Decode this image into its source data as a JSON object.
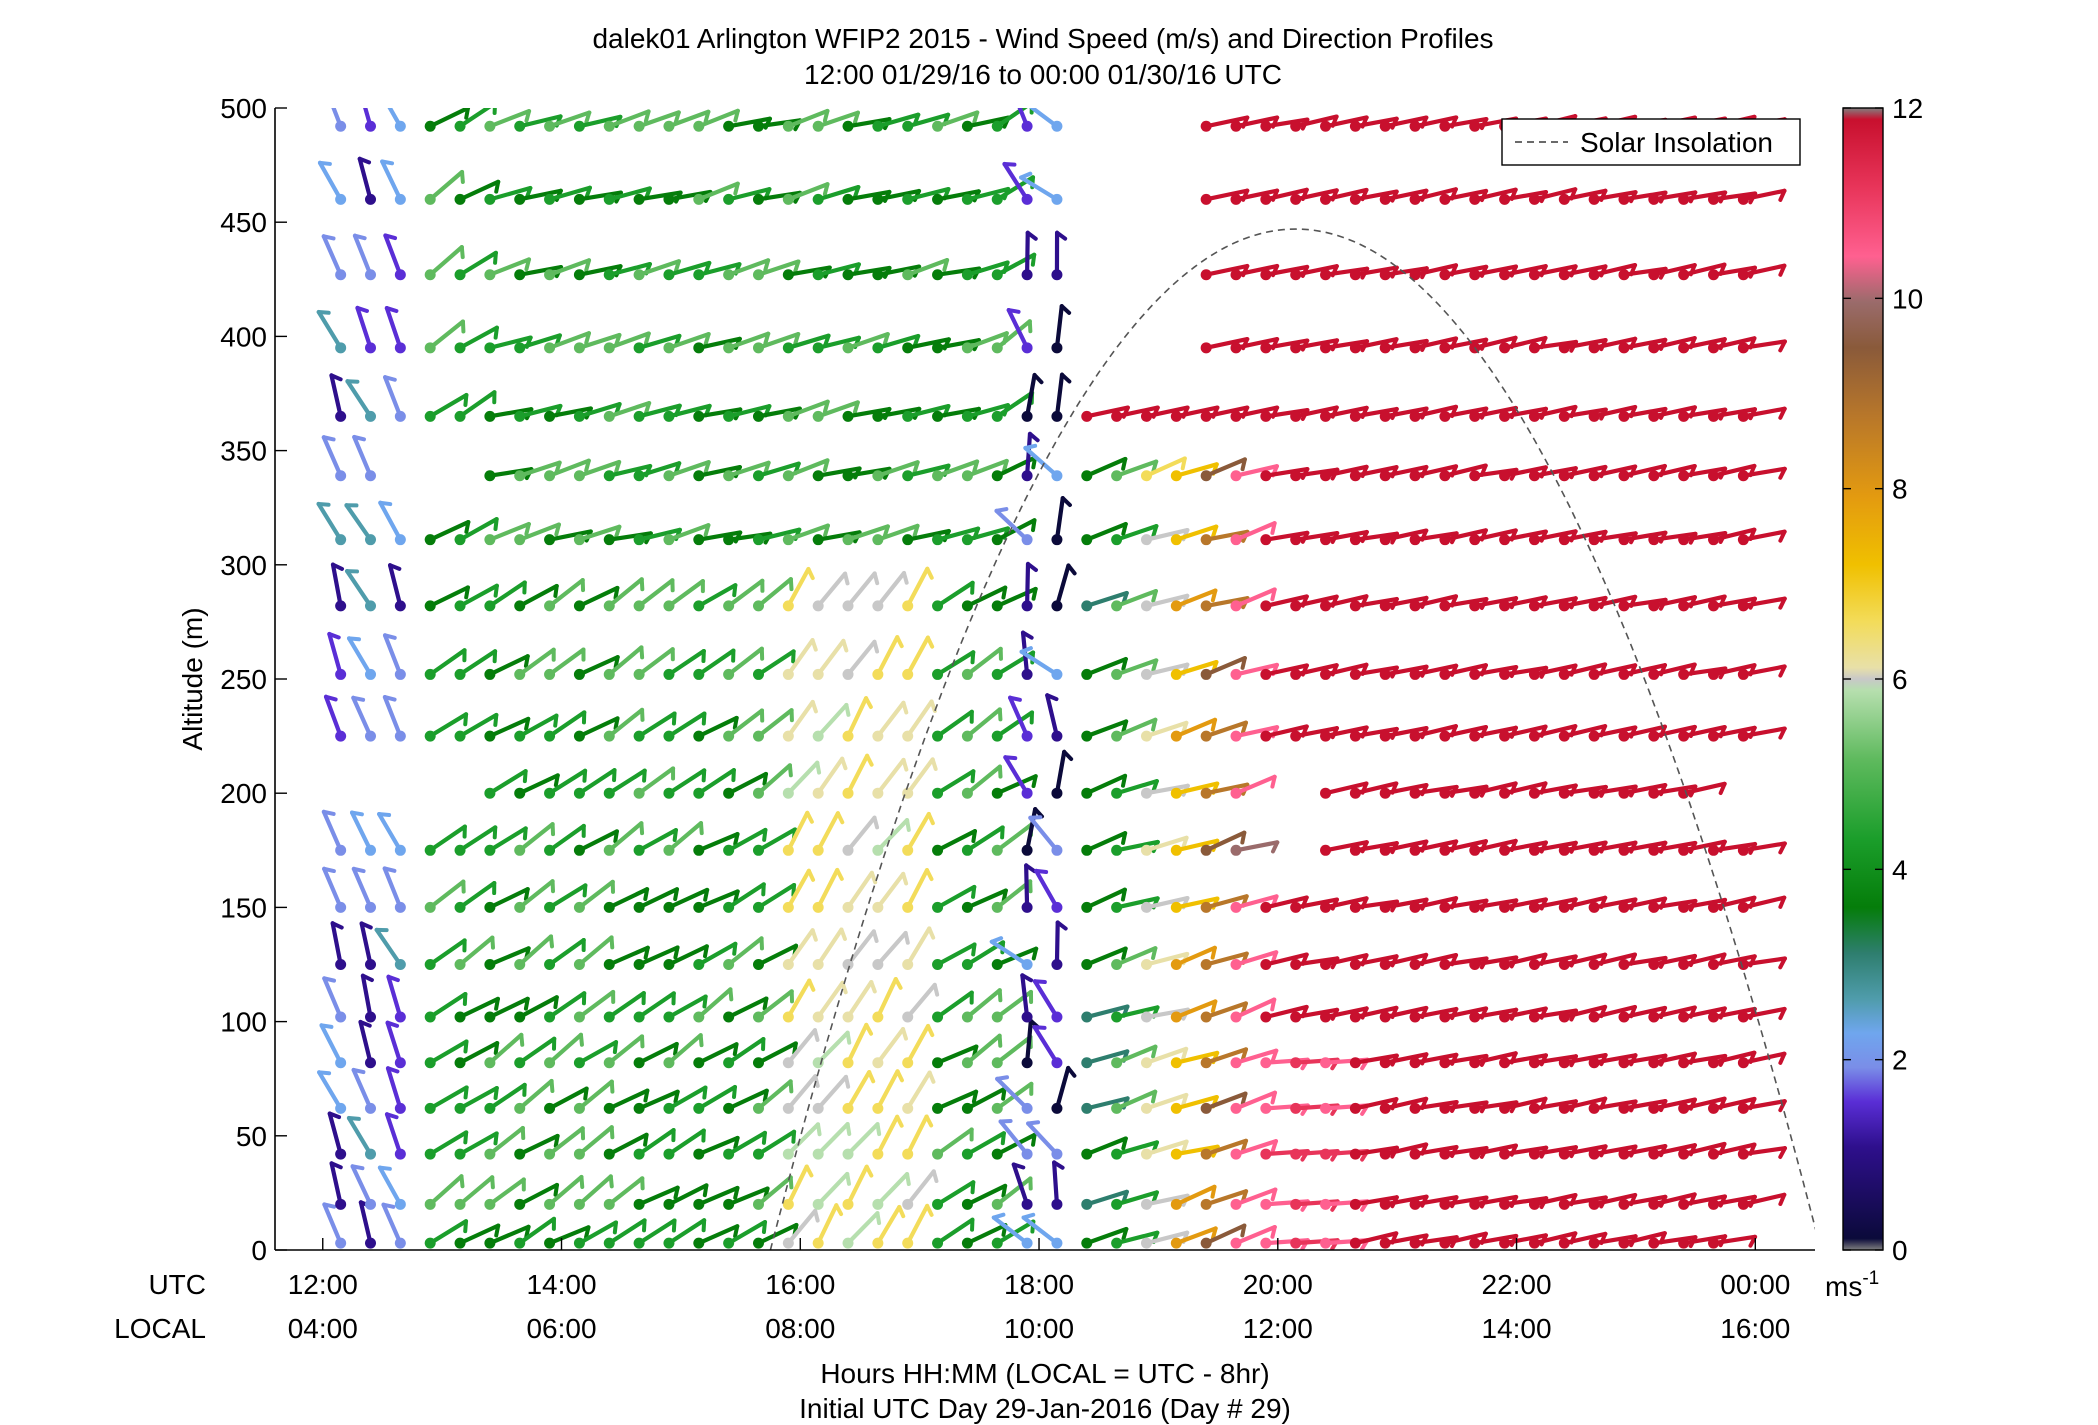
{
  "chart_data": {
    "type": "wind-barb-profile",
    "title_line1": "dalek01 Arlington WFIP2 2015 - Wind Speed (m/s) and Direction Profiles",
    "title_line2": "12:00 01/29/16 to 00:00 01/30/16  UTC",
    "ylabel": "Altitude (m)",
    "ylim": [
      0,
      500
    ],
    "yticks": [
      "0",
      "50",
      "100",
      "150",
      "200",
      "250",
      "300",
      "350",
      "400",
      "450",
      "500"
    ],
    "xlim_hours_utc": [
      11.6,
      24.5
    ],
    "x_ticks_utc": [
      "12:00",
      "14:00",
      "16:00",
      "18:00",
      "20:00",
      "22:00",
      "00:00"
    ],
    "x_ticks_local": [
      "04:00",
      "06:00",
      "08:00",
      "10:00",
      "12:00",
      "14:00",
      "16:00"
    ],
    "utc_row_label": "UTC",
    "local_row_label": "LOCAL",
    "xlabel_line1": "Hours HH:MM  (LOCAL = UTC - 8hr)",
    "xlabel_line2": "Initial UTC Day 29-Jan-2016 (Day # 29)",
    "legend": {
      "entry": "Solar Insolation",
      "placement": "top-right",
      "style": "dashed"
    },
    "colorbar": {
      "min": 0,
      "max": 12,
      "ticks": [
        "0",
        "2",
        "4",
        "6",
        "8",
        "10",
        "12"
      ],
      "units_base": "ms",
      "units_exp": "-1"
    },
    "solar_insolation": {
      "sunrise_utc": 15.75,
      "sunset_utc": 24.55,
      "peak_utc": 20.15,
      "peak_altitude_equiv": 447
    },
    "altitudes_m": [
      3,
      20,
      42,
      62,
      82,
      102,
      125,
      150,
      175,
      200,
      225,
      252,
      282,
      311,
      339,
      365,
      395,
      427,
      460,
      492
    ],
    "series": [
      {
        "name": "",
        "time_start_utc": 12.15,
        "time_end_utc": 18.2,
        "step_hr": 0.25,
        "speed_range": [
          0.5,
          7.0
        ],
        "direction": "south-southwest to west"
      },
      {
        "name": "",
        "time_start_utc": 18.2,
        "time_end_utc": 19.7,
        "step_hr": 0.25,
        "speed_range": [
          1.0,
          10.8
        ],
        "direction": "southwest"
      },
      {
        "name": "",
        "time_start_utc": 19.7,
        "time_end_utc": 23.9,
        "step_hr": 0.25,
        "speed_range": [
          12,
          12
        ],
        "direction": "west-southwest"
      }
    ]
  }
}
